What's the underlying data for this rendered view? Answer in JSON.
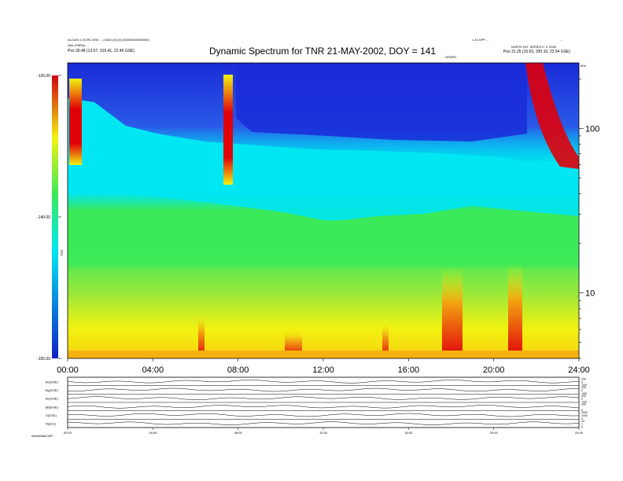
{
  "header": {
    "title": "Dynamic Spectrum for TNR 21-MAY-2002, DOY = 141",
    "top_left_line1": "ALCAS=1  DCRC  ENV  ... (1002) (0) (0) (00000000000000)",
    "top_left_line2": "ANL=PARAL  ...",
    "top_left_line3": "Pos      30.48 (13.67, 319.41, 22.45 GSE)",
    "top_right_line1": "1.10 VPP  ...",
    "top_right_line2": "NORTH INT.  SERIES 0, 0, 0000",
    "top_right_line3": "Pos      31.25 (15.63, 330.10, 22.54 GSE)",
    "top_right_corner": "...",
    "center_small": "GRAPH"
  },
  "colors": {
    "low": "#1a2bd8",
    "cyan": "#00e6f2",
    "green": "#3bea5a",
    "yellow": "#f2f210",
    "high": "#e0000a"
  },
  "colorbar": {
    "ticks": [
      "-125.00",
      "-140.00",
      "-155.00"
    ],
    "label": "TNR"
  },
  "right_axis": {
    "unit": "kHz",
    "ticks": [
      "100",
      "10"
    ]
  },
  "chart_data": [
    {
      "type": "heatmap",
      "title": "Dynamic Spectrum for TNR 21-MAY-2002, DOY = 141",
      "xlabel": "",
      "ylabel": "kHz",
      "x_ticks": [
        "00:00",
        "04:00",
        "08:00",
        "12:00",
        "16:00",
        "20:00",
        "24:00"
      ],
      "xlim": [
        "00:00",
        "24:00"
      ],
      "ylim": [
        4,
        250
      ],
      "y_scale": "log",
      "y_ticks": [
        100,
        10
      ],
      "color_scale": {
        "min": -155.0,
        "max": -125.0,
        "ticks": [
          -125.0,
          -140.0,
          -155.0
        ]
      },
      "features": [
        "cyan/blue background above ~40-70 kHz, deep blue above ~100 kHz between 08:00 and 21:00",
        "green/yellow continuum below ~40 kHz across the day",
        "red/yellow burst columns near 00:30 and 07:40 extending above 100 kHz",
        "bright red arc from ~21:30 descending toward ~70 kHz by 24:00",
        "red low-frequency emission near 18:00 and 21:00"
      ]
    },
    {
      "type": "line",
      "title": "",
      "panels": [
        {
          "label": "Bx(GSE)",
          "right_ticks": [
            "200",
            "0",
            "-200"
          ]
        },
        {
          "label": "By(GSE)",
          "right_ticks": [
            "200",
            "0",
            "-200"
          ]
        },
        {
          "label": "Bz(GSE)",
          "right_ticks": [
            "200",
            "0",
            "-200"
          ]
        },
        {
          "label": "|B|(GSE)",
          "right_ticks": [
            "200",
            "0"
          ]
        },
        {
          "label": "V(GSE)",
          "right_ticks": [
            "2000",
            "1000",
            "0"
          ]
        },
        {
          "label": "Np(/cc)",
          "right_ticks": [
            "10",
            "1",
            "0"
          ]
        }
      ],
      "x_ticks": [
        "00:00",
        "04:00",
        "08:00",
        "12:00",
        "16:00",
        "20:00",
        "24:00"
      ],
      "footer_left": "Wind/Mars  MFI"
    }
  ]
}
